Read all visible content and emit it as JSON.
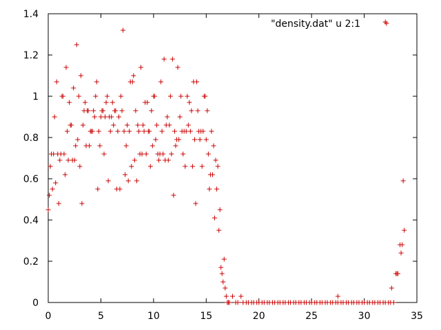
{
  "chart_data": {
    "type": "scatter",
    "title": "",
    "xlabel": "",
    "ylabel": "",
    "xlim": [
      0,
      35
    ],
    "ylim": [
      0,
      1.4
    ],
    "grid": false,
    "legend_position": "top-right",
    "marker": "+",
    "series_color": "#cc0000",
    "x_ticks": [
      "0",
      "5",
      "10",
      "15",
      "20",
      "25",
      "30",
      "35"
    ],
    "y_ticks": [
      "0",
      "0.2",
      "0.4",
      "0.6",
      "0.8",
      "1",
      "1.2",
      "1.4"
    ],
    "series": [
      {
        "name": "\"density.dat\" u 2:1",
        "points": [
          [
            0.0,
            0.45
          ],
          [
            0.1,
            0.52
          ],
          [
            0.2,
            0.66
          ],
          [
            0.3,
            0.72
          ],
          [
            0.4,
            0.55
          ],
          [
            0.5,
            0.72
          ],
          [
            0.6,
            0.9
          ],
          [
            0.7,
            0.58
          ],
          [
            0.8,
            1.07
          ],
          [
            0.9,
            0.72
          ],
          [
            1.0,
            0.48
          ],
          [
            1.1,
            0.69
          ],
          [
            1.2,
            0.72
          ],
          [
            1.3,
            1.0
          ],
          [
            1.4,
            1.0
          ],
          [
            1.5,
            0.72
          ],
          [
            1.6,
            0.62
          ],
          [
            1.7,
            1.14
          ],
          [
            1.8,
            0.83
          ],
          [
            1.9,
            0.69
          ],
          [
            2.0,
            0.97
          ],
          [
            2.1,
            0.86
          ],
          [
            2.2,
            0.86
          ],
          [
            2.3,
            0.69
          ],
          [
            2.4,
            1.04
          ],
          [
            2.5,
            0.69
          ],
          [
            2.6,
            0.76
          ],
          [
            2.7,
            1.25
          ],
          [
            2.8,
            0.79
          ],
          [
            2.9,
            1.0
          ],
          [
            3.0,
            0.66
          ],
          [
            3.1,
            1.1
          ],
          [
            3.2,
            0.48
          ],
          [
            3.3,
            0.86
          ],
          [
            3.4,
            0.93
          ],
          [
            3.5,
            0.97
          ],
          [
            3.6,
            0.76
          ],
          [
            3.7,
            0.93
          ],
          [
            3.8,
            0.93
          ],
          [
            3.9,
            0.76
          ],
          [
            4.0,
            0.83
          ],
          [
            4.1,
            0.83
          ],
          [
            4.2,
            0.83
          ],
          [
            4.3,
            0.93
          ],
          [
            4.4,
            0.9
          ],
          [
            4.5,
            1.0
          ],
          [
            4.6,
            1.07
          ],
          [
            4.7,
            0.55
          ],
          [
            4.8,
            0.83
          ],
          [
            4.9,
            0.76
          ],
          [
            5.0,
            0.9
          ],
          [
            5.1,
            0.93
          ],
          [
            5.2,
            0.93
          ],
          [
            5.3,
            0.72
          ],
          [
            5.4,
            0.9
          ],
          [
            5.5,
            0.97
          ],
          [
            5.6,
            1.0
          ],
          [
            5.7,
            0.59
          ],
          [
            5.8,
            0.9
          ],
          [
            5.9,
            0.83
          ],
          [
            6.0,
            0.9
          ],
          [
            6.1,
            0.97
          ],
          [
            6.2,
            0.86
          ],
          [
            6.3,
            0.93
          ],
          [
            6.4,
            0.93
          ],
          [
            6.5,
            0.55
          ],
          [
            6.6,
            0.83
          ],
          [
            6.7,
            0.9
          ],
          [
            6.8,
            0.55
          ],
          [
            6.9,
            1.0
          ],
          [
            7.0,
            0.93
          ],
          [
            7.1,
            1.32
          ],
          [
            7.2,
            0.83
          ],
          [
            7.3,
            0.62
          ],
          [
            7.4,
            0.76
          ],
          [
            7.5,
            0.86
          ],
          [
            7.6,
            0.59
          ],
          [
            7.7,
            0.83
          ],
          [
            7.8,
            1.07
          ],
          [
            7.9,
            0.66
          ],
          [
            8.0,
            1.07
          ],
          [
            8.1,
            1.1
          ],
          [
            8.2,
            0.69
          ],
          [
            8.3,
            0.93
          ],
          [
            8.4,
            0.59
          ],
          [
            8.5,
            0.86
          ],
          [
            8.6,
            0.83
          ],
          [
            8.7,
            0.72
          ],
          [
            8.8,
            1.14
          ],
          [
            8.9,
            0.72
          ],
          [
            9.0,
            0.86
          ],
          [
            9.1,
            0.83
          ],
          [
            9.2,
            0.97
          ],
          [
            9.3,
            0.72
          ],
          [
            9.4,
            0.97
          ],
          [
            9.5,
            0.83
          ],
          [
            9.6,
            0.83
          ],
          [
            9.7,
            0.66
          ],
          [
            9.8,
            0.93
          ],
          [
            9.9,
            0.76
          ],
          [
            10.0,
            1.0
          ],
          [
            10.1,
            1.0
          ],
          [
            10.2,
            0.79
          ],
          [
            10.3,
            0.86
          ],
          [
            10.4,
            0.72
          ],
          [
            10.5,
            0.69
          ],
          [
            10.6,
            0.72
          ],
          [
            10.7,
            1.07
          ],
          [
            10.8,
            0.83
          ],
          [
            10.9,
            0.72
          ],
          [
            11.0,
            1.18
          ],
          [
            11.1,
            0.69
          ],
          [
            11.2,
            0.86
          ],
          [
            11.3,
            0.9
          ],
          [
            11.4,
            0.69
          ],
          [
            11.5,
            0.86
          ],
          [
            11.6,
            1.0
          ],
          [
            11.7,
            0.72
          ],
          [
            11.8,
            1.18
          ],
          [
            11.9,
            0.52
          ],
          [
            12.0,
            0.83
          ],
          [
            12.1,
            0.76
          ],
          [
            12.2,
            0.79
          ],
          [
            12.3,
            1.14
          ],
          [
            12.4,
            0.79
          ],
          [
            12.5,
            0.9
          ],
          [
            12.6,
            1.0
          ],
          [
            12.7,
            0.83
          ],
          [
            12.8,
            0.72
          ],
          [
            12.9,
            0.83
          ],
          [
            13.0,
            0.66
          ],
          [
            13.1,
            0.83
          ],
          [
            13.2,
            1.0
          ],
          [
            13.3,
            0.86
          ],
          [
            13.4,
            0.97
          ],
          [
            13.5,
            0.83
          ],
          [
            13.6,
            0.93
          ],
          [
            13.7,
            0.66
          ],
          [
            13.8,
            1.07
          ],
          [
            13.9,
            0.79
          ],
          [
            14.0,
            0.48
          ],
          [
            14.1,
            1.07
          ],
          [
            14.2,
            0.93
          ],
          [
            14.3,
            0.83
          ],
          [
            14.4,
            0.79
          ],
          [
            14.5,
            0.83
          ],
          [
            14.6,
            0.66
          ],
          [
            14.7,
            0.83
          ],
          [
            14.8,
            1.0
          ],
          [
            14.9,
            1.0
          ],
          [
            15.0,
            0.79
          ],
          [
            15.1,
            0.93
          ],
          [
            15.2,
            0.72
          ],
          [
            15.3,
            0.55
          ],
          [
            15.4,
            0.62
          ],
          [
            15.5,
            0.83
          ],
          [
            15.6,
            0.62
          ],
          [
            15.7,
            0.76
          ],
          [
            15.8,
            0.41
          ],
          [
            15.9,
            0.69
          ],
          [
            16.0,
            0.55
          ],
          [
            16.1,
            0.66
          ],
          [
            16.2,
            0.35
          ],
          [
            16.3,
            0.45
          ],
          [
            16.4,
            0.17
          ],
          [
            16.5,
            0.14
          ],
          [
            16.6,
            0.1
          ],
          [
            16.7,
            0.21
          ],
          [
            16.8,
            0.07
          ],
          [
            16.9,
            0.03
          ],
          [
            17.0,
            0.0
          ],
          [
            17.1,
            0.0
          ],
          [
            17.2,
            0.0
          ],
          [
            17.5,
            0.03
          ],
          [
            17.8,
            0.0
          ],
          [
            18.0,
            0.0
          ],
          [
            18.3,
            0.03
          ],
          [
            18.5,
            0.0
          ],
          [
            18.8,
            0.0
          ],
          [
            19.0,
            0.0
          ],
          [
            19.3,
            0.0
          ],
          [
            19.5,
            0.0
          ],
          [
            19.8,
            0.0
          ],
          [
            20.0,
            0.0
          ],
          [
            20.3,
            0.0
          ],
          [
            20.5,
            0.0
          ],
          [
            20.8,
            0.0
          ],
          [
            21.0,
            0.0
          ],
          [
            21.3,
            0.0
          ],
          [
            21.5,
            0.0
          ],
          [
            21.8,
            0.0
          ],
          [
            22.0,
            0.0
          ],
          [
            22.3,
            0.0
          ],
          [
            22.5,
            0.0
          ],
          [
            22.8,
            0.0
          ],
          [
            23.0,
            0.0
          ],
          [
            23.3,
            0.0
          ],
          [
            23.5,
            0.0
          ],
          [
            23.8,
            0.0
          ],
          [
            24.0,
            0.0
          ],
          [
            24.3,
            0.0
          ],
          [
            24.5,
            0.0
          ],
          [
            24.8,
            0.0
          ],
          [
            25.0,
            0.0
          ],
          [
            25.3,
            0.0
          ],
          [
            25.5,
            0.0
          ],
          [
            25.8,
            0.0
          ],
          [
            26.0,
            0.0
          ],
          [
            26.3,
            0.0
          ],
          [
            26.5,
            0.0
          ],
          [
            26.8,
            0.0
          ],
          [
            27.0,
            0.0
          ],
          [
            27.3,
            0.0
          ],
          [
            27.5,
            0.03
          ],
          [
            27.5,
            0.0
          ],
          [
            27.8,
            0.0
          ],
          [
            28.0,
            0.0
          ],
          [
            28.3,
            0.0
          ],
          [
            28.5,
            0.0
          ],
          [
            28.8,
            0.0
          ],
          [
            29.0,
            0.0
          ],
          [
            29.3,
            0.0
          ],
          [
            29.5,
            0.0
          ],
          [
            29.8,
            0.0
          ],
          [
            30.0,
            0.0
          ],
          [
            30.3,
            0.0
          ],
          [
            30.5,
            0.0
          ],
          [
            30.8,
            0.0
          ],
          [
            31.0,
            0.0
          ],
          [
            31.3,
            0.0
          ],
          [
            31.5,
            0.0
          ],
          [
            31.8,
            0.0
          ],
          [
            32.0,
            0.0
          ],
          [
            32.3,
            0.0
          ],
          [
            32.5,
            0.0
          ],
          [
            32.6,
            0.07
          ],
          [
            32.8,
            0.0
          ],
          [
            33.0,
            0.14
          ],
          [
            33.1,
            0.14
          ],
          [
            33.2,
            0.14
          ],
          [
            33.4,
            0.28
          ],
          [
            33.5,
            0.24
          ],
          [
            33.6,
            0.28
          ],
          [
            33.7,
            0.59
          ],
          [
            33.8,
            0.35
          ],
          [
            32.0,
            1.36
          ]
        ]
      }
    ]
  }
}
